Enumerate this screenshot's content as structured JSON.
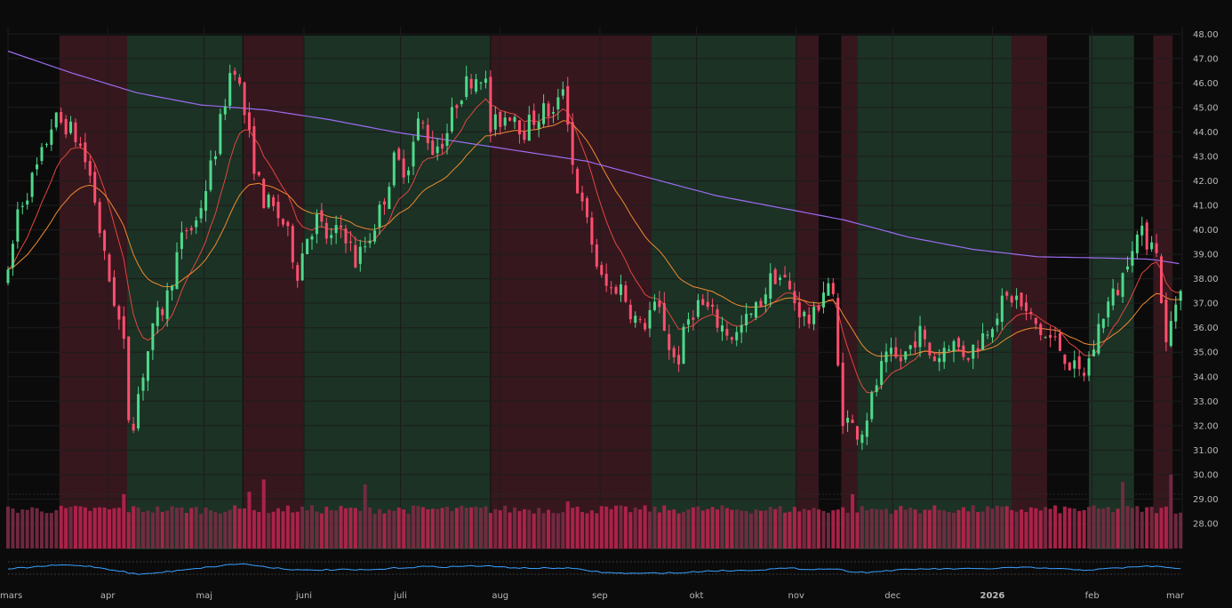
{
  "chart_data": {
    "type": "candlestick",
    "y_axis_side": "right",
    "ylim": [
      27.6,
      48.3
    ],
    "y_ticks": [
      "48.00",
      "47.00",
      "46.00",
      "45.00",
      "44.00",
      "43.00",
      "42.00",
      "41.00",
      "40.00",
      "39.00",
      "38.00",
      "37.00",
      "36.00",
      "35.00",
      "34.00",
      "33.00",
      "32.00",
      "31.00",
      "30.00",
      "29.00",
      "28.00"
    ],
    "x_ticks": [
      {
        "label": "mars",
        "day": 0
      },
      {
        "label": "apr",
        "day": 31
      },
      {
        "label": "maj",
        "day": 61
      },
      {
        "label": "juni",
        "day": 92
      },
      {
        "label": "juli",
        "day": 122
      },
      {
        "label": "aug",
        "day": 153
      },
      {
        "label": "sep",
        "day": 184
      },
      {
        "label": "okt",
        "day": 214
      },
      {
        "label": "nov",
        "day": 245
      },
      {
        "label": "dec",
        "day": 275
      },
      {
        "label": "2026",
        "day": 306
      },
      {
        "label": "feb",
        "day": 337
      },
      {
        "label": "mar",
        "day": 365
      }
    ],
    "regimes": [
      {
        "start": 16,
        "end": 37,
        "state": "bearish"
      },
      {
        "start": 37,
        "end": 73,
        "state": "bullish"
      },
      {
        "start": 73,
        "end": 92,
        "state": "bearish"
      },
      {
        "start": 92,
        "end": 150,
        "state": "bullish"
      },
      {
        "start": 150,
        "end": 200,
        "state": "bearish"
      },
      {
        "start": 200,
        "end": 245,
        "state": "bullish"
      },
      {
        "start": 245,
        "end": 252,
        "state": "bearish"
      },
      {
        "start": 259,
        "end": 264,
        "state": "bearish"
      },
      {
        "start": 264,
        "end": 312,
        "state": "bullish"
      },
      {
        "start": 312,
        "end": 323,
        "state": "bearish"
      },
      {
        "start": 336,
        "end": 350,
        "state": "bullish"
      },
      {
        "start": 356,
        "end": 362,
        "state": "bearish"
      }
    ],
    "price_anchors": [
      [
        0,
        38.0
      ],
      [
        3,
        40.8
      ],
      [
        6,
        41.6
      ],
      [
        10,
        42.8
      ],
      [
        14,
        44.5
      ],
      [
        18,
        44.3
      ],
      [
        22,
        43.6
      ],
      [
        26,
        42.0
      ],
      [
        30,
        38.8
      ],
      [
        34,
        36.6
      ],
      [
        36,
        35.2
      ],
      [
        38,
        31.5
      ],
      [
        40,
        33.0
      ],
      [
        43,
        34.8
      ],
      [
        46,
        36.3
      ],
      [
        49,
        37.0
      ],
      [
        52,
        38.7
      ],
      [
        55,
        40.0
      ],
      [
        58,
        40.1
      ],
      [
        61,
        41.5
      ],
      [
        64,
        43.0
      ],
      [
        67,
        45.0
      ],
      [
        70,
        47.1
      ],
      [
        73,
        45.1
      ],
      [
        76,
        43.0
      ],
      [
        79,
        41.3
      ],
      [
        82,
        40.9
      ],
      [
        86,
        40.2
      ],
      [
        90,
        38.3
      ],
      [
        93,
        39.8
      ],
      [
        96,
        40.4
      ],
      [
        100,
        39.5
      ],
      [
        104,
        40.2
      ],
      [
        108,
        38.7
      ],
      [
        112,
        39.6
      ],
      [
        116,
        40.9
      ],
      [
        120,
        42.8
      ],
      [
        124,
        42.5
      ],
      [
        128,
        44.6
      ],
      [
        132,
        43.3
      ],
      [
        136,
        43.8
      ],
      [
        140,
        45.5
      ],
      [
        144,
        46.2
      ],
      [
        148,
        46.5
      ],
      [
        150,
        44.1
      ],
      [
        153,
        44.5
      ],
      [
        157,
        44.9
      ],
      [
        160,
        44.0
      ],
      [
        163,
        44.5
      ],
      [
        167,
        44.9
      ],
      [
        170,
        44.6
      ],
      [
        173,
        46.2
      ],
      [
        175,
        43.0
      ],
      [
        178,
        41.1
      ],
      [
        181,
        39.8
      ],
      [
        184,
        38.0
      ],
      [
        187,
        37.5
      ],
      [
        190,
        37.8
      ],
      [
        194,
        36.6
      ],
      [
        197,
        35.9
      ],
      [
        200,
        36.8
      ],
      [
        203,
        36.6
      ],
      [
        206,
        35.0
      ],
      [
        208,
        34.5
      ],
      [
        211,
        36.2
      ],
      [
        214,
        37.0
      ],
      [
        217,
        36.8
      ],
      [
        220,
        36.3
      ],
      [
        223,
        35.9
      ],
      [
        226,
        35.6
      ],
      [
        229,
        36.2
      ],
      [
        232,
        36.6
      ],
      [
        235,
        37.4
      ],
      [
        238,
        38.2
      ],
      [
        241,
        38.0
      ],
      [
        244,
        37.2
      ],
      [
        247,
        36.5
      ],
      [
        250,
        36.2
      ],
      [
        253,
        37.5
      ],
      [
        256,
        38.0
      ],
      [
        259,
        32.5
      ],
      [
        262,
        32.0
      ],
      [
        265,
        31.7
      ],
      [
        268,
        32.8
      ],
      [
        271,
        34.2
      ],
      [
        274,
        34.8
      ],
      [
        277,
        34.6
      ],
      [
        280,
        35.1
      ],
      [
        283,
        35.9
      ],
      [
        286,
        35.0
      ],
      [
        289,
        34.7
      ],
      [
        292,
        35.5
      ],
      [
        295,
        35.2
      ],
      [
        298,
        34.9
      ],
      [
        301,
        35.3
      ],
      [
        304,
        35.9
      ],
      [
        307,
        36.6
      ],
      [
        310,
        37.1
      ],
      [
        313,
        37.3
      ],
      [
        316,
        36.6
      ],
      [
        319,
        36.2
      ],
      [
        322,
        35.6
      ],
      [
        325,
        35.5
      ],
      [
        328,
        35.0
      ],
      [
        331,
        34.3
      ],
      [
        334,
        34.0
      ],
      [
        337,
        35.0
      ],
      [
        340,
        36.5
      ],
      [
        343,
        37.2
      ],
      [
        346,
        37.8
      ],
      [
        349,
        39.5
      ],
      [
        352,
        39.8
      ],
      [
        354,
        39.6
      ],
      [
        356,
        39.9
      ],
      [
        358,
        38.0
      ],
      [
        360,
        35.2
      ],
      [
        362,
        36.5
      ],
      [
        365,
        38.2
      ]
    ],
    "candles_note": "daily OHLC candles following the price path",
    "volume_baseline": 29.0,
    "volume_spikes": [
      [
        36,
        29.2
      ],
      [
        75,
        29.3
      ],
      [
        79,
        29.8
      ],
      [
        111,
        29.6
      ],
      [
        174,
        28.9
      ],
      [
        262,
        29.2
      ],
      [
        362,
        30.0
      ],
      [
        347,
        29.7
      ]
    ],
    "series": [
      {
        "key": "ema_fast",
        "color": "#e2463f"
      },
      {
        "key": "ema_slow",
        "color": "#f08a2f"
      },
      {
        "key": "sma_long",
        "color": "#9d6bf0"
      }
    ],
    "sma_long_anchors": [
      [
        0,
        47.3
      ],
      [
        20,
        46.4
      ],
      [
        40,
        45.6
      ],
      [
        60,
        45.1
      ],
      [
        80,
        44.9
      ],
      [
        100,
        44.5
      ],
      [
        120,
        44.0
      ],
      [
        140,
        43.6
      ],
      [
        160,
        43.2
      ],
      [
        180,
        42.8
      ],
      [
        200,
        42.1
      ],
      [
        220,
        41.4
      ],
      [
        240,
        40.9
      ],
      [
        260,
        40.4
      ],
      [
        280,
        39.7
      ],
      [
        300,
        39.2
      ],
      [
        320,
        38.9
      ],
      [
        340,
        38.85
      ],
      [
        355,
        38.8
      ],
      [
        365,
        38.6
      ]
    ],
    "oscillator_color": "#3aa0ff",
    "colors": {
      "bull": "#4fd98a",
      "bear": "#ff4f6e",
      "bull_zone": "#1f3a2a",
      "bear_zone": "#3e1a22",
      "background": "#0b0b0b",
      "grid": "#1c1c1c"
    }
  }
}
